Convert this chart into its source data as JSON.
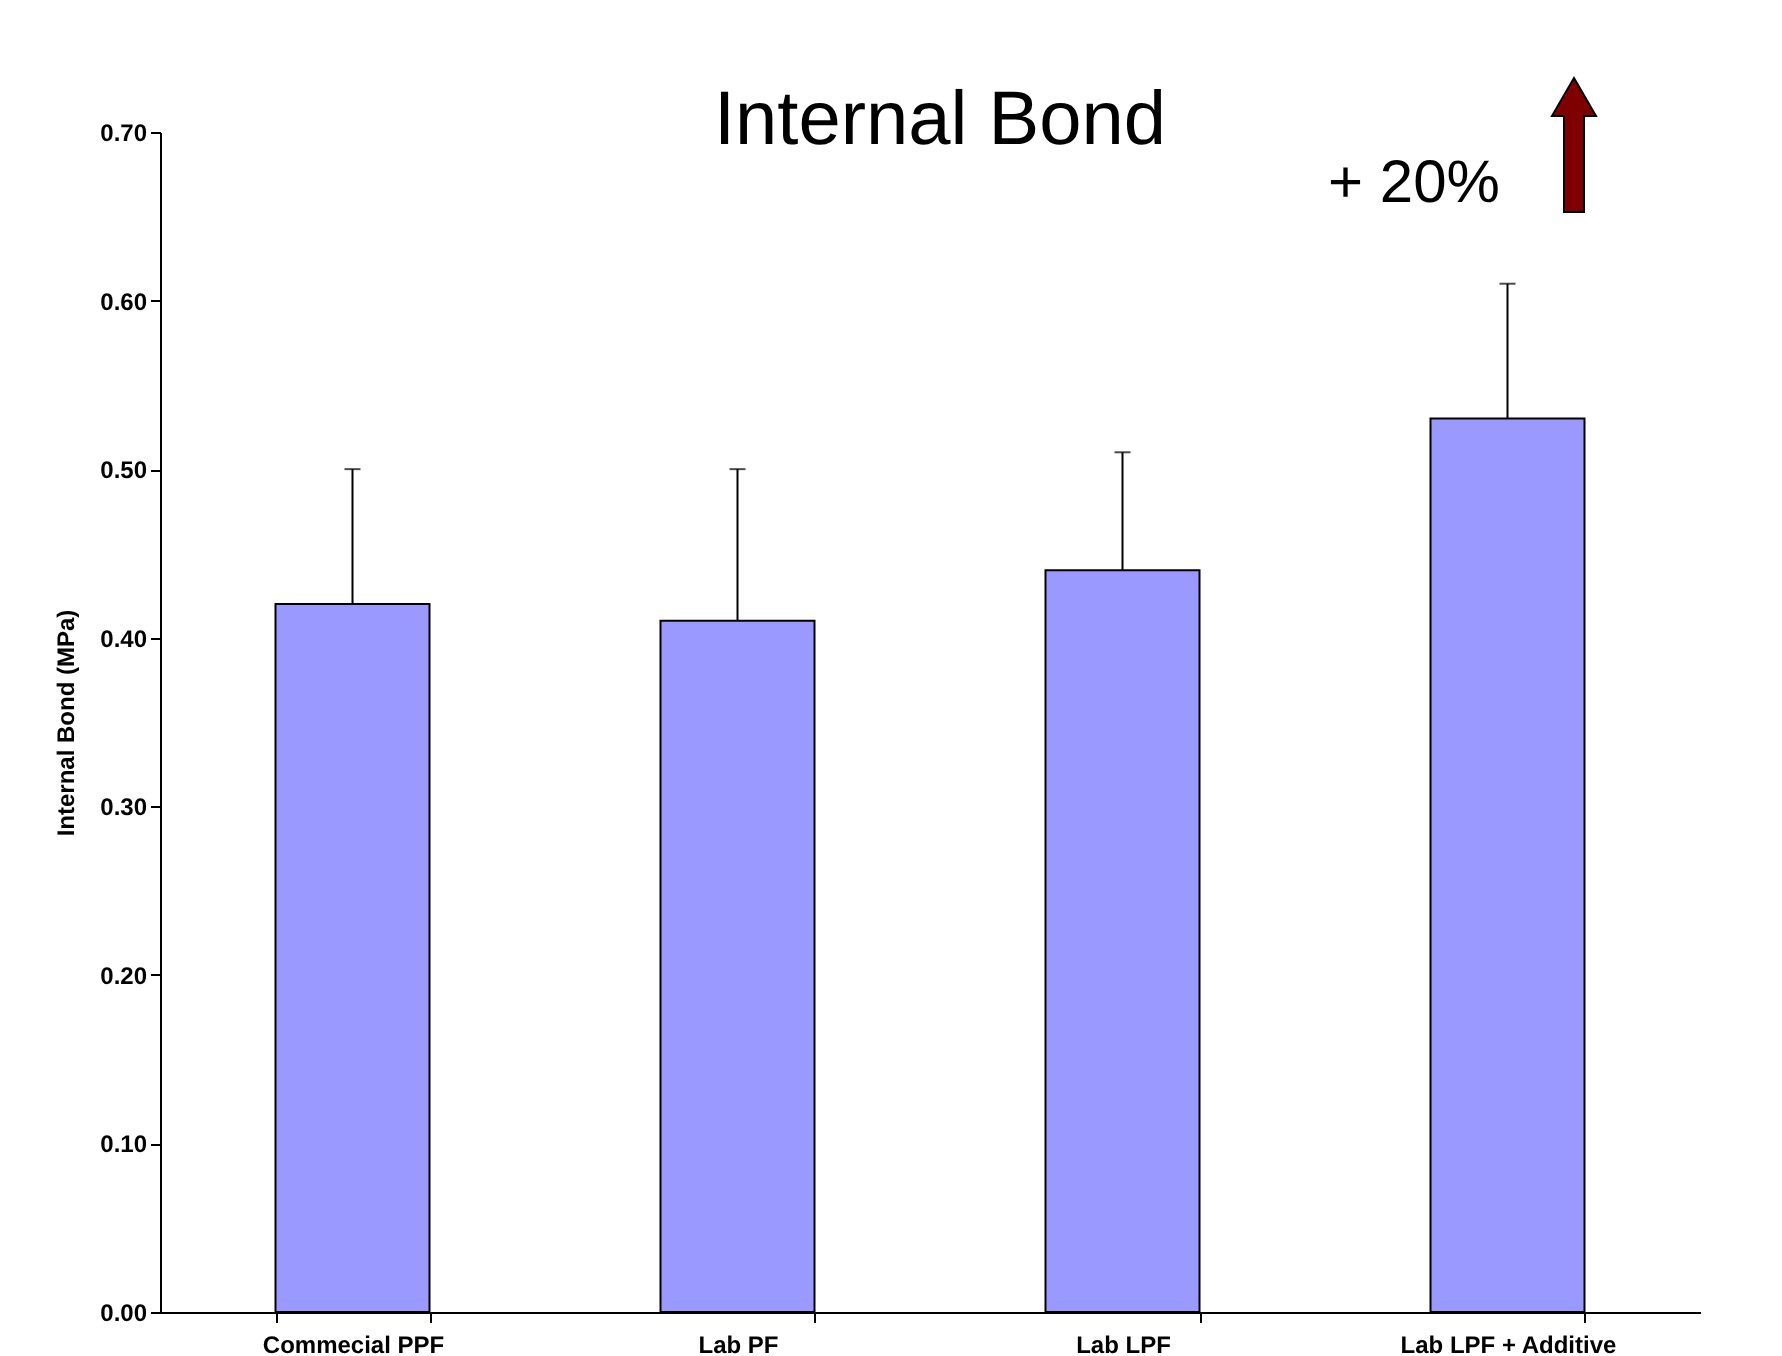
{
  "chart_data": {
    "type": "bar",
    "title": "Internal Bond",
    "ylabel": "Internal Bond (MPa)",
    "categories": [
      "Commecial PPF",
      "Lab PF",
      "Lab LPF",
      "Lab LPF + Additive"
    ],
    "values": [
      0.42,
      0.41,
      0.44,
      0.53
    ],
    "errors": [
      [
        0.42,
        0.5
      ],
      [
        0.41,
        0.5
      ],
      [
        0.44,
        0.51
      ],
      [
        0.53,
        0.61
      ]
    ],
    "color": "#9999ff",
    "ylim": [
      0,
      0.7
    ],
    "yticks": [
      {
        "value": 0,
        "label": "0.00"
      },
      {
        "value": 0.1,
        "label": "0.10"
      },
      {
        "value": 0.2,
        "label": "0.20"
      },
      {
        "value": 0.3,
        "label": "0.30"
      },
      {
        "value": 0.4,
        "label": "0.40"
      },
      {
        "value": 0.5,
        "label": "0.50"
      },
      {
        "value": 0.6,
        "label": "0.60"
      },
      {
        "value": 0.7,
        "label": "0.70"
      }
    ],
    "annotations": [
      "+ 20%"
    ],
    "grid": false
  }
}
